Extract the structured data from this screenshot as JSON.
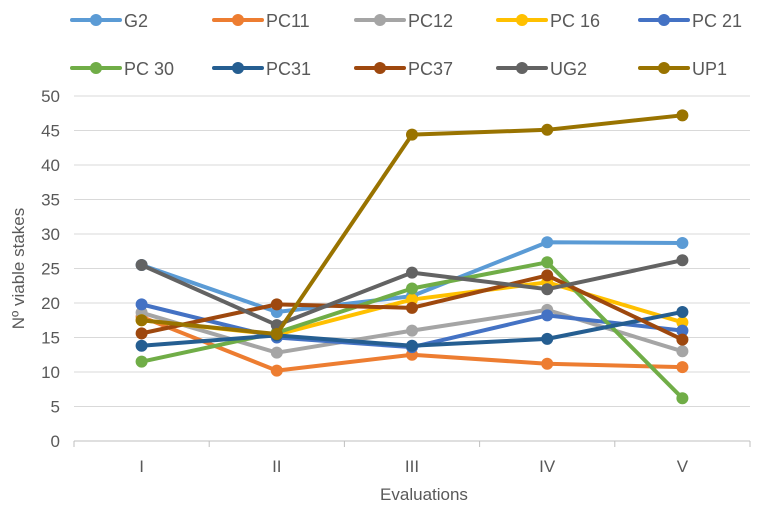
{
  "chart_data": {
    "type": "line",
    "categories": [
      "I",
      "II",
      "III",
      "IV",
      "V"
    ],
    "xlabel": "Evaluations",
    "ylabel": "Nº viable stakes",
    "ylim": [
      0,
      50
    ],
    "yticks": [
      0,
      5,
      10,
      15,
      20,
      25,
      30,
      35,
      40,
      45,
      50
    ],
    "grid": true,
    "legend_position": "top",
    "series": [
      {
        "name": "G2",
        "color": "#5B9BD5",
        "values": [
          25.5,
          18.7,
          21.0,
          28.8,
          28.7
        ]
      },
      {
        "name": "PC11",
        "color": "#ED7D31",
        "values": [
          18.0,
          10.2,
          12.5,
          11.2,
          10.7
        ]
      },
      {
        "name": "PC12",
        "color": "#A5A5A5",
        "values": [
          18.6,
          12.8,
          16.0,
          19.0,
          13.0
        ]
      },
      {
        "name": "PC 16",
        "color": "#FFC000",
        "values": [
          17.5,
          15.4,
          20.5,
          23.0,
          17.2
        ]
      },
      {
        "name": "PC 21",
        "color": "#4472C4",
        "values": [
          19.8,
          15.0,
          13.6,
          18.2,
          16.0
        ]
      },
      {
        "name": "PC 30",
        "color": "#70AD47",
        "values": [
          11.5,
          15.7,
          22.1,
          25.9,
          6.2
        ]
      },
      {
        "name": "PC31",
        "color": "#255E91",
        "values": [
          13.8,
          15.3,
          13.8,
          14.8,
          18.7
        ]
      },
      {
        "name": "PC37",
        "color": "#9E480E",
        "values": [
          15.6,
          19.8,
          19.3,
          24.0,
          14.7
        ]
      },
      {
        "name": "UG2",
        "color": "#636363",
        "values": [
          25.5,
          16.8,
          24.4,
          22.0,
          26.2
        ]
      },
      {
        "name": "UP1",
        "color": "#997300",
        "values": [
          17.5,
          15.5,
          44.4,
          45.1,
          47.2
        ]
      }
    ]
  }
}
